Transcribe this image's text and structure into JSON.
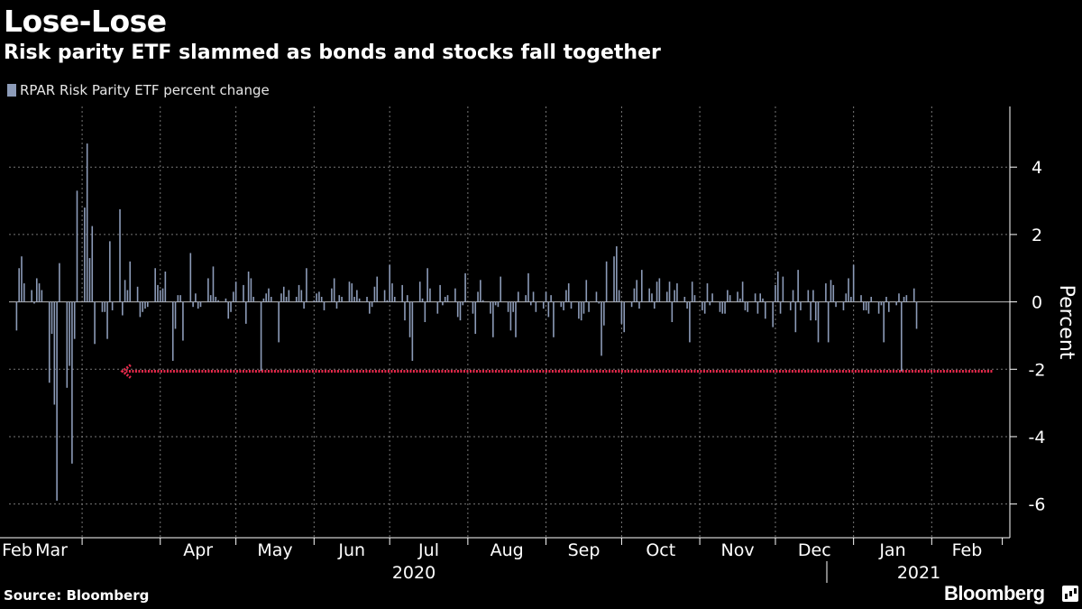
{
  "title": "Lose-Lose",
  "subtitle": "Risk parity ETF slammed as bonds and stocks fall together",
  "source": "Source: Bloomberg",
  "brand": "Bloomberg",
  "chart_data": {
    "type": "bar",
    "legend": "RPAR Risk Parity ETF percent change",
    "legend_position": "top-left",
    "ylabel": "Percent",
    "ylim": [
      -7,
      5.8
    ],
    "yticks": [
      4,
      2,
      0,
      -2,
      -4,
      -6
    ],
    "y_axis_side": "right",
    "grid": true,
    "bar_color": "#8c9bb8",
    "annotation_color": "#e8294b",
    "months": [
      "Feb",
      "Mar",
      "Apr",
      "May",
      "Jun",
      "Jul",
      "Aug",
      "Sep",
      "Oct",
      "Nov",
      "Dec",
      "Jan",
      "Feb"
    ],
    "years": [
      "2020",
      "2021"
    ],
    "start_date": "2020-02-04",
    "annotation": {
      "type": "arrow",
      "y": -2.06,
      "from_date": "2021-02-25",
      "to_date": "2020-03-17"
    },
    "values": [
      -0.85,
      1.0,
      1.35,
      0.55,
      0.35,
      -0.05,
      0.7,
      0.55,
      0.35,
      -2.4,
      -0.95,
      -3.05,
      -5.9,
      1.15,
      -2.55,
      -1.9,
      -4.8,
      -1.1,
      3.3,
      2.8,
      4.7,
      1.3,
      2.25,
      -1.25,
      -0.3,
      -0.3,
      -1.1,
      1.8,
      -0.25,
      2.75,
      -0.4,
      0.65,
      0.35,
      1.2,
      0.45,
      -0.45,
      -0.3,
      -0.2,
      -0.15,
      1.0,
      0.5,
      0.35,
      0.4,
      0.9,
      -1.75,
      -0.8,
      0.2,
      0.2,
      -1.15,
      1.45,
      -0.15,
      0.25,
      -0.2,
      -0.15,
      0.7,
      0.2,
      1.05,
      0.15,
      0.05,
      0.1,
      -0.5,
      -0.3,
      0.3,
      0.6,
      0.5,
      -0.65,
      0.9,
      0.7,
      0.15,
      -2.05,
      0.1,
      0.25,
      0.4,
      0.15,
      -1.2,
      0.25,
      0.45,
      0.15,
      0.35,
      0.15,
      0.5,
      0.35,
      -0.2,
      1.0,
      0.05,
      0.25,
      0.3,
      0.15,
      -0.25,
      0.4,
      0.7,
      -0.2,
      0.2,
      0.15,
      0.6,
      0.55,
      0.15,
      0.35,
      0.1,
      0.15,
      -0.35,
      -0.15,
      0.45,
      0.75,
      0.35,
      0.05,
      1.1,
      0.55,
      0.15,
      0.5,
      -0.55,
      0.2,
      -1.05,
      -1.75,
      0.6,
      0.1,
      -0.6,
      1.0,
      0.4,
      -0.35,
      0.5,
      -0.1,
      0.15,
      0.2,
      0.4,
      -0.45,
      -0.55,
      -0.1,
      0.85,
      -0.35,
      -0.95,
      0.3,
      0.65,
      0.05,
      -0.35,
      -1.05,
      -0.1,
      -0.15,
      0.75,
      -0.3,
      -0.85,
      -0.3,
      -1.05,
      0.3,
      0.2,
      0.85,
      -0.1,
      0.3,
      -0.3,
      -0.2,
      0.3,
      -0.45,
      0.2,
      -1.05,
      -0.15,
      -0.25,
      0.35,
      0.55,
      -0.2,
      -0.5,
      -0.55,
      -0.35,
      0.65,
      -0.3,
      0.3,
      -0.05,
      -1.6,
      -0.7,
      1.2,
      1.35,
      1.65,
      0.35,
      -0.65,
      -0.9,
      -0.15,
      0.4,
      0.65,
      -0.2,
      0.95,
      0.4,
      0.25,
      -0.2,
      0.6,
      0.7,
      0.3,
      0.6,
      -0.6,
      0.35,
      0.55,
      0.15,
      -0.2,
      -1.2,
      0.6,
      0.2,
      -0.25,
      -0.35,
      0.55,
      -0.1,
      0.25,
      -0.3,
      -0.35,
      -0.35,
      0.35,
      0.2,
      0.3,
      0.1,
      0.6,
      -0.25,
      -0.3,
      0.25,
      -0.35,
      0.25,
      0.1,
      -0.5,
      -0.75,
      0.5,
      0.9,
      -0.35,
      0.75,
      -0.25,
      0.35,
      -0.9,
      0.95,
      -0.25,
      0.35,
      -0.55,
      0.35,
      -0.55,
      -1.2,
      0.55,
      -1.2,
      0.65,
      0.5,
      -0.15,
      -0.25,
      0.25,
      0.7,
      0.15,
      1.1,
      0.2,
      -0.25,
      -0.25,
      -0.35,
      0.15,
      -0.35,
      -0.1,
      -1.2,
      0.15,
      -0.3,
      -0.1,
      0.25,
      -2.06,
      0.15,
      0.2,
      0.4,
      -0.8
    ]
  }
}
